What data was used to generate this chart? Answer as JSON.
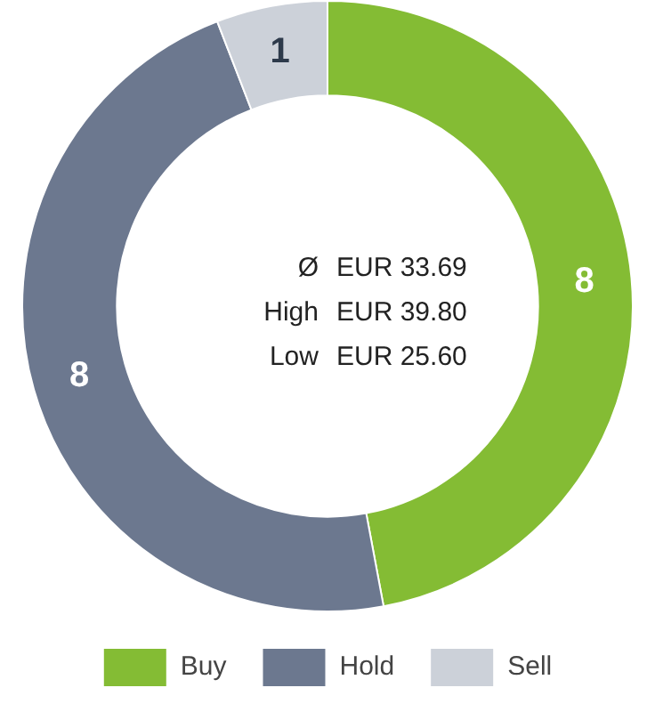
{
  "chart_data": {
    "type": "donut",
    "categories": [
      "Buy",
      "Hold",
      "Sell"
    ],
    "values": [
      8,
      8,
      1
    ],
    "colors": [
      "#84bc34",
      "#6c788f",
      "#ccd1d9"
    ],
    "data_labels": true,
    "legend": "bottom",
    "annotations": [
      "Ø",
      "EUR 33.69",
      "High",
      "EUR 39.80",
      "Low",
      "EUR 25.60"
    ]
  }
}
